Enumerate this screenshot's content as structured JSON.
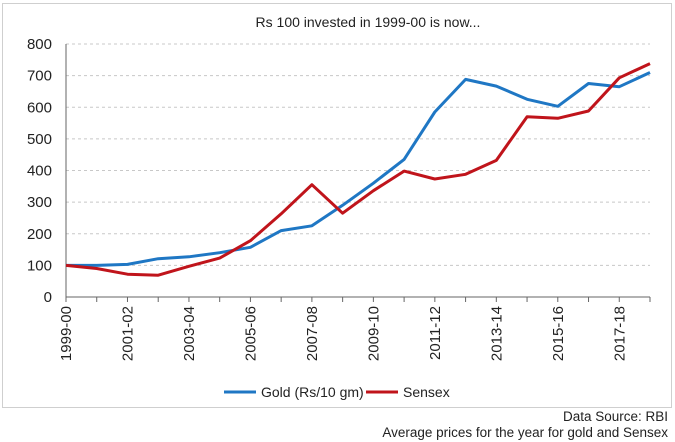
{
  "chart_data": {
    "type": "line",
    "title": "Rs 100 invested in 1999-00 is now...",
    "xlabel": "",
    "ylabel": "",
    "ylim": [
      0,
      800
    ],
    "yticks": [
      0,
      100,
      200,
      300,
      400,
      500,
      600,
      700,
      800
    ],
    "grid": "horizontal dashed",
    "x": [
      "1999-00",
      "2000-01",
      "2001-02",
      "2002-03",
      "2003-04",
      "2004-05",
      "2005-06",
      "2006-07",
      "2007-08",
      "2008-09",
      "2009-10",
      "2010-11",
      "2011-12",
      "2012-13",
      "2013-14",
      "2014-15",
      "2015-16",
      "2016-17",
      "2017-18",
      "2018-19"
    ],
    "xtick_labels": [
      "1999-00",
      "2001-02",
      "2003-04",
      "2005-06",
      "2007-08",
      "2009-10",
      "2011-12",
      "2013-14",
      "2015-16",
      "2017-18"
    ],
    "series": [
      {
        "name": "Gold (Rs/10 gm)",
        "color": "#1f77c4",
        "values": [
          100,
          100,
          103,
          121,
          127,
          140,
          157,
          210,
          225,
          290,
          360,
          435,
          585,
          688,
          667,
          625,
          603,
          675,
          665,
          710
        ]
      },
      {
        "name": "Sensex",
        "color": "#c0141b",
        "values": [
          100,
          90,
          72,
          69,
          97,
          123,
          178,
          263,
          355,
          265,
          336,
          398,
          373,
          388,
          432,
          570,
          565,
          588,
          693,
          738
        ]
      }
    ],
    "legend_position": "bottom"
  },
  "source": {
    "line1": "Data Source: RBI",
    "line2": "Average prices for the year for gold and Sensex"
  }
}
